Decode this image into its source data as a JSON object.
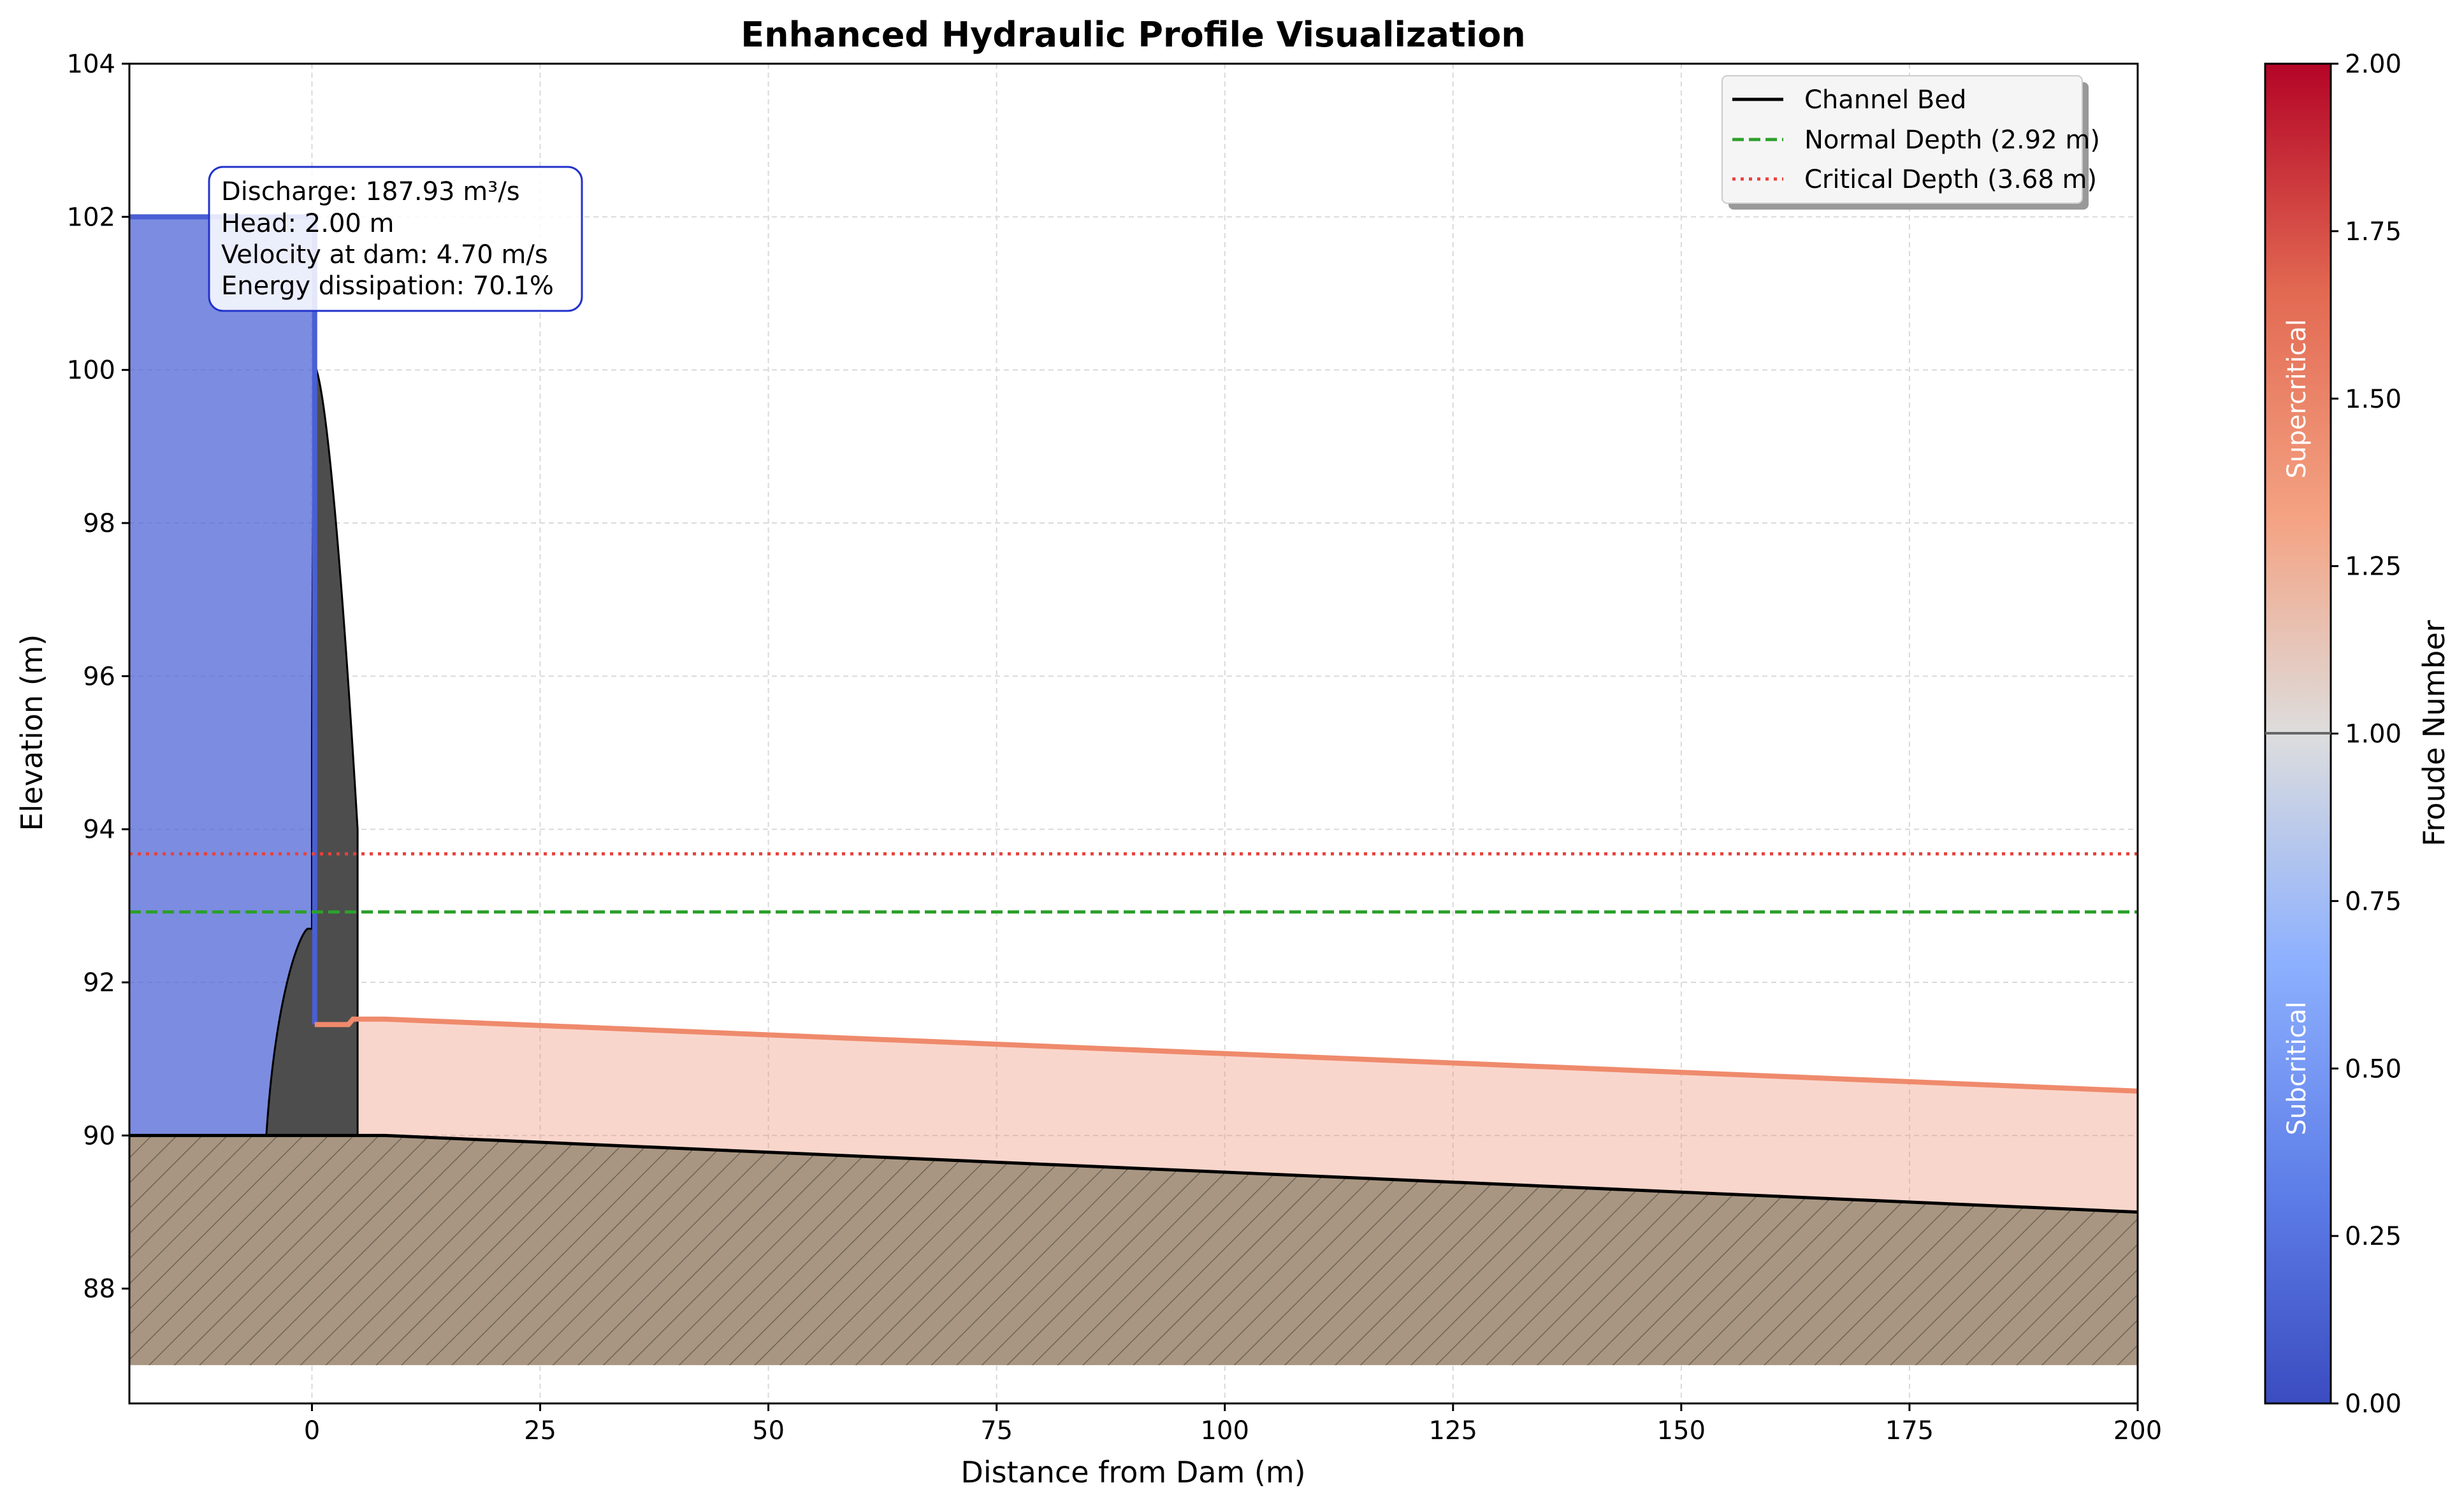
{
  "chart_data": {
    "type": "line",
    "title": "Enhanced Hydraulic Profile Visualization",
    "xlabel": "Distance from Dam (m)",
    "ylabel": "Elevation (m)",
    "xlim": [
      -20,
      200
    ],
    "ylim": [
      86.5,
      104
    ],
    "x_ticks": [
      "0",
      "25",
      "50",
      "75",
      "100",
      "125",
      "150",
      "175",
      "200"
    ],
    "x_tick_values": [
      0,
      25,
      50,
      75,
      100,
      125,
      150,
      175,
      200
    ],
    "y_ticks": [
      "88",
      "90",
      "92",
      "94",
      "96",
      "98",
      "100",
      "102",
      "104"
    ],
    "y_tick_values": [
      88,
      90,
      92,
      94,
      96,
      98,
      100,
      102,
      104
    ],
    "grid": true,
    "legend_position": "top-right",
    "series": [
      {
        "name": "Channel Bed",
        "style": "solid",
        "color": "#000000",
        "x": [
          -20,
          0,
          8,
          200
        ],
        "y": [
          90,
          90,
          90,
          89
        ]
      },
      {
        "name": "Normal Depth (2.92 m)",
        "style": "dashed",
        "color": "#2ca02c",
        "x": [
          -20,
          200
        ],
        "y": [
          92.92,
          92.92
        ]
      },
      {
        "name": "Critical Depth (3.68 m)",
        "style": "dotted",
        "color": "#e8413a",
        "x": [
          -20,
          200
        ],
        "y": [
          93.68,
          93.68
        ]
      }
    ],
    "reservoir": {
      "x": [
        -20,
        0.3
      ],
      "surface": 102,
      "bed": 90,
      "color": "#4a5fd4"
    },
    "dam_profile": {
      "upstream_toe": [
        -5,
        90
      ],
      "crest": [
        0.5,
        100
      ],
      "downstream_toe": [
        5,
        90
      ],
      "color": "#4d4d4d"
    },
    "tailwater_surface": {
      "color": "#ef8a6c",
      "x": [
        0.3,
        4,
        4.5,
        8,
        200
      ],
      "y": [
        91.45,
        91.45,
        91.52,
        91.52,
        90.58
      ]
    },
    "ground": {
      "bottom": 87,
      "color": "#a89682"
    },
    "annotations": [
      "Discharge: 187.93 m³/s",
      "Head: 2.00 m",
      "Velocity at dam: 4.70 m/s",
      "Energy dissipation: 70.1%"
    ],
    "colorbar": {
      "label": "Froude Number",
      "range": [
        0,
        2
      ],
      "ticks": [
        "0.00",
        "0.25",
        "0.50",
        "0.75",
        "1.00",
        "1.25",
        "1.50",
        "1.75",
        "2.00"
      ],
      "tick_values": [
        0,
        0.25,
        0.5,
        0.75,
        1.0,
        1.25,
        1.5,
        1.75,
        2.0
      ],
      "regions": [
        "Subcritical",
        "Supercritical"
      ],
      "colormap": [
        "#3b4cc0",
        "#7396f5",
        "#b0cbfc",
        "#dddddd",
        "#f6b69a",
        "#ea7b60",
        "#b40426"
      ]
    }
  }
}
